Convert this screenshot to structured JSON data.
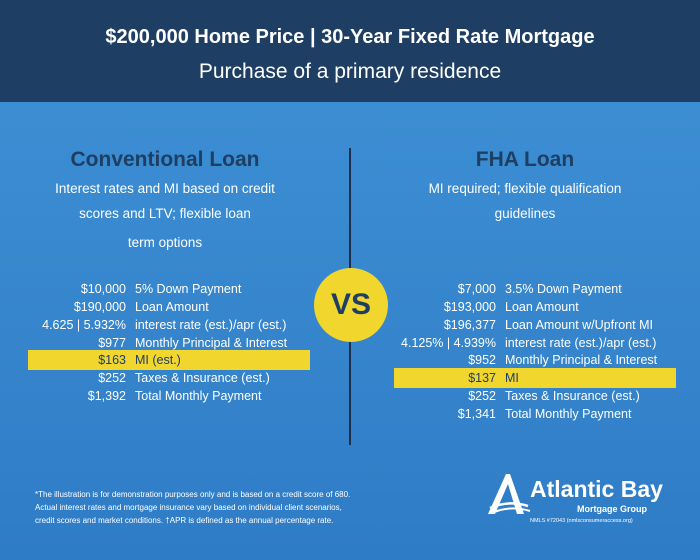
{
  "header": {
    "title": "$200,000 Home Price | 30-Year Fixed Rate Mortgage",
    "subtitle": "Purchase of a primary residence"
  },
  "vs_label": "VS",
  "conventional": {
    "title": "Conventional Loan",
    "desc_lines": [
      "Interest rates and MI based on credit",
      "scores and LTV;  flexible loan",
      "term options"
    ],
    "rows": [
      {
        "amount": "$10,000",
        "label": "5% Down Payment"
      },
      {
        "amount": "$190,000",
        "label": "Loan Amount"
      },
      {
        "amount": "4.625 | 5.932%",
        "label": "interest rate (est.)/apr (est.)"
      },
      {
        "amount": "$977",
        "label": "Monthly Principal & Interest"
      },
      {
        "amount": "$163",
        "label": "MI (est.)"
      },
      {
        "amount": "$252",
        "label": "Taxes & Insurance (est.)"
      },
      {
        "amount": "$1,392",
        "label": "Total Monthly Payment"
      }
    ]
  },
  "fha": {
    "title": "FHA Loan",
    "desc_lines": [
      "MI required; flexible qualification",
      "guidelines"
    ],
    "rows": [
      {
        "amount": "$7,000",
        "label": "3.5% Down Payment"
      },
      {
        "amount": "$193,000",
        "label": "Loan Amount"
      },
      {
        "amount": "$196,377",
        "label": "Loan Amount w/Upfront MI"
      },
      {
        "amount": "4.125% | 4.939%",
        "label": "interest rate (est.)/apr (est.)"
      },
      {
        "amount": "$952",
        "label": "Monthly Principal & Interest"
      },
      {
        "amount": "$137",
        "label": "MI"
      },
      {
        "amount": "$252",
        "label": "Taxes & Insurance (est.)"
      },
      {
        "amount": "$1,341",
        "label": "Total Monthly Payment"
      }
    ]
  },
  "footnote_lines": [
    "*The illustration is for demonstration purposes only and is based on a credit score of 680.",
    "Actual interest rates and mortgage insurance vary based on individual client scenarios,",
    "credit scores and market conditions. †APR is defined as the annual percentage rate."
  ],
  "logo": {
    "name": "Atlantic Bay",
    "sub": "Mortgage Group",
    "nmls": "NMLS #72043 (nmlsconsumeraccess.org)"
  },
  "colors": {
    "navy": "#1f3e63",
    "blue": "#3a8bd2",
    "yellow": "#f1d62d"
  }
}
